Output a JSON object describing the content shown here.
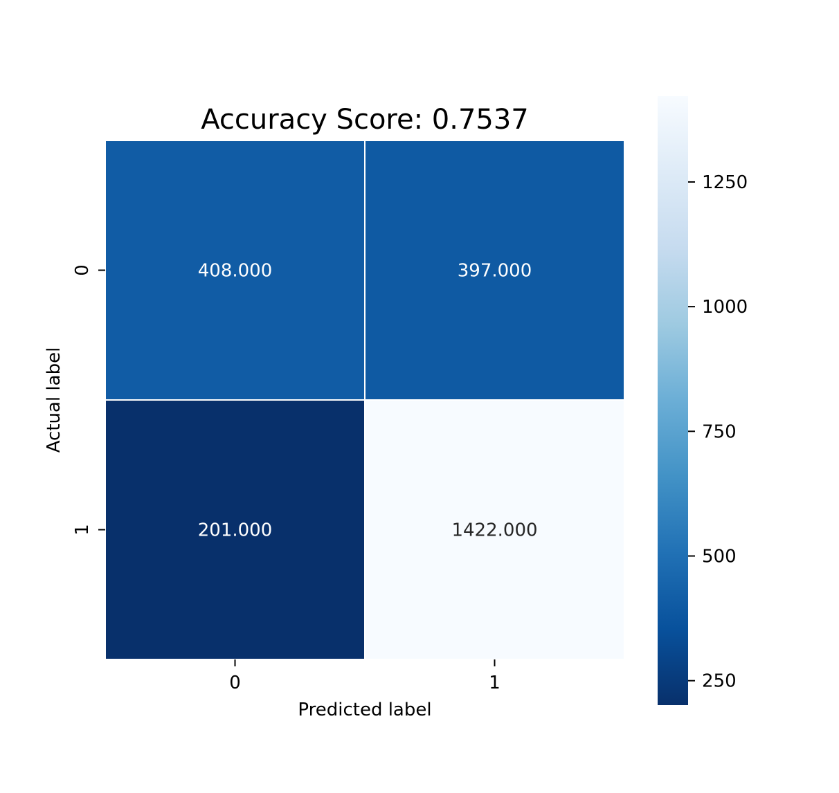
{
  "chart_data": {
    "type": "heatmap",
    "title": "Accuracy Score: 0.7537",
    "xlabel": "Predicted label",
    "ylabel": "Actual label",
    "x_categories": [
      "0",
      "1"
    ],
    "y_categories": [
      "0",
      "1"
    ],
    "values": [
      [
        408,
        397
      ],
      [
        201,
        1422
      ]
    ],
    "value_labels": [
      [
        "408.000",
        "397.000"
      ],
      [
        "201.000",
        "1422.000"
      ]
    ],
    "colormap": "Blues_r",
    "colorbar": {
      "range": [
        201,
        1422
      ],
      "ticks": [
        250,
        500,
        750,
        1000,
        1250
      ],
      "tick_labels": [
        "250",
        "500",
        "750",
        "1000",
        "1250"
      ]
    },
    "grid": false,
    "colors": {
      "low": "#08306b",
      "high": "#f7fbff",
      "cell_border": "#ffffff",
      "dark_text": "#262626",
      "light_text": "#ffffff"
    }
  }
}
